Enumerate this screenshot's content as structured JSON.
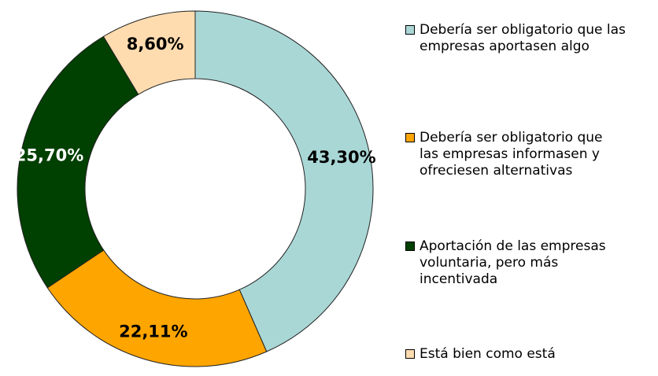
{
  "chart_data": {
    "type": "donut",
    "categories": [
      "Debería ser obligatorio que las empresas aportasen algo",
      "Debería ser obligatorio que las empresas informasen y ofreciesen alternativas",
      "Aportación de las empresas voluntaria, pero más incentivada",
      "Está bien como está"
    ],
    "values": [
      43.3,
      22.11,
      25.7,
      8.6
    ],
    "value_labels": [
      "43,30%",
      "22,11%",
      "25,70%",
      "8,60%"
    ],
    "colors": [
      "#a9d7d6",
      "#ffa500",
      "#004000",
      "#ffdcb0"
    ],
    "legend": "right"
  }
}
